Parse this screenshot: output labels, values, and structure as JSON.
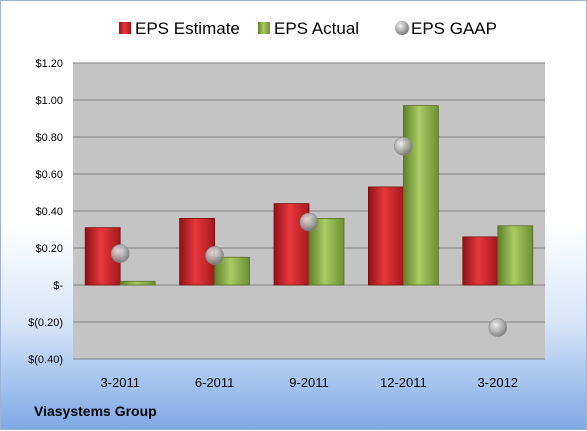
{
  "chart_data": {
    "type": "bar",
    "categories": [
      "3-2011",
      "6-2011",
      "9-2011",
      "12-2011",
      "3-2012"
    ],
    "series": [
      {
        "name": "EPS Estimate",
        "kind": "bar",
        "color": "#cc1f24",
        "values": [
          0.31,
          0.36,
          0.44,
          0.53,
          0.26
        ]
      },
      {
        "name": "EPS Actual",
        "kind": "bar",
        "color": "#8db34a",
        "values": [
          0.02,
          0.15,
          0.36,
          0.97,
          0.32
        ]
      },
      {
        "name": "EPS GAAP",
        "kind": "marker",
        "color": "#a7a9ac",
        "values": [
          0.17,
          0.16,
          0.34,
          0.75,
          -0.23
        ]
      }
    ],
    "ylim": [
      -0.4,
      1.2
    ],
    "yticks": [
      -0.4,
      -0.2,
      0,
      0.2,
      0.4,
      0.6,
      0.8,
      1.0,
      1.2
    ],
    "ytick_labels": [
      "$(0.40)",
      "$(0.20)",
      "$-",
      "$0.20",
      "$0.40",
      "$0.60",
      "$0.80",
      "$1.00",
      "$1.20"
    ],
    "grid": true,
    "legend_position": "top"
  },
  "footer": {
    "company": "Viasystems Group"
  }
}
